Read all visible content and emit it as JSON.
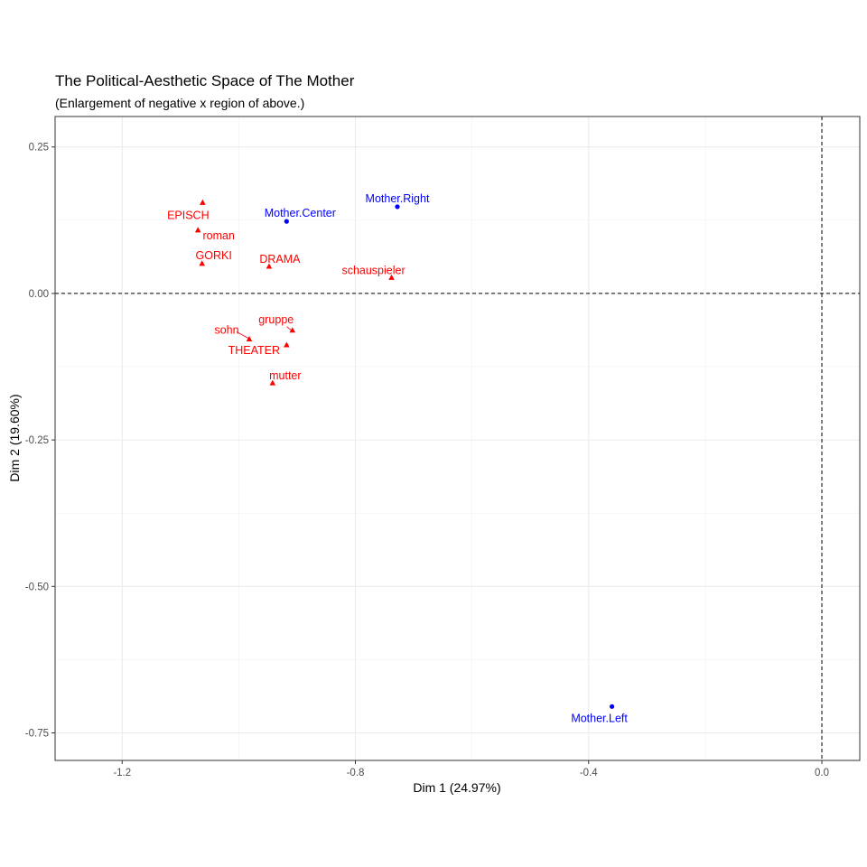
{
  "chart_data": {
    "type": "scatter",
    "title": "The Political-Aesthetic Space of The Mother",
    "subtitle": "(Enlargement of negative x region of above.)",
    "xlabel": "Dim 1 (24.97%)",
    "ylabel": "Dim 2 (19.60%)",
    "xlim": [
      -1.315,
      0.065
    ],
    "ylim": [
      -0.797,
      0.302
    ],
    "x_ticks": [
      -1.2,
      -0.8,
      -0.4,
      0.0
    ],
    "x_tick_labels": [
      "-1.2",
      "-0.8",
      "-0.4",
      "0.0"
    ],
    "y_ticks": [
      0.25,
      0.0,
      -0.25,
      -0.5,
      -0.75
    ],
    "y_tick_labels": [
      "0.25",
      "0.00",
      "-0.25",
      "-0.50",
      "-0.75"
    ],
    "grid": true,
    "reference_lines": {
      "x": 0,
      "y": 0,
      "style": "dashed"
    },
    "series": [
      {
        "color": "#0000FF",
        "marker": "circle",
        "points": [
          {
            "label": "Mother.Center",
            "x": -0.918,
            "y": 0.123
          },
          {
            "label": "Mother.Right",
            "x": -0.728,
            "y": 0.148
          },
          {
            "label": "Mother.Left",
            "x": -0.36,
            "y": -0.705
          }
        ]
      },
      {
        "color": "#FF0000",
        "marker": "triangle",
        "points": [
          {
            "label": "EPISCH",
            "x": -1.062,
            "y": 0.155
          },
          {
            "label": "roman",
            "x": -1.07,
            "y": 0.108
          },
          {
            "label": "GORKI",
            "x": -1.063,
            "y": 0.051
          },
          {
            "label": "DRAMA",
            "x": -0.948,
            "y": 0.046
          },
          {
            "label": "schauspieler",
            "x": -0.738,
            "y": 0.027
          },
          {
            "label": "gruppe",
            "x": -0.908,
            "y": -0.063
          },
          {
            "label": "sohn",
            "x": -0.982,
            "y": -0.078
          },
          {
            "label": "THEATER",
            "x": -0.918,
            "y": -0.088
          },
          {
            "label": "mutter",
            "x": -0.942,
            "y": -0.153
          }
        ]
      }
    ]
  }
}
